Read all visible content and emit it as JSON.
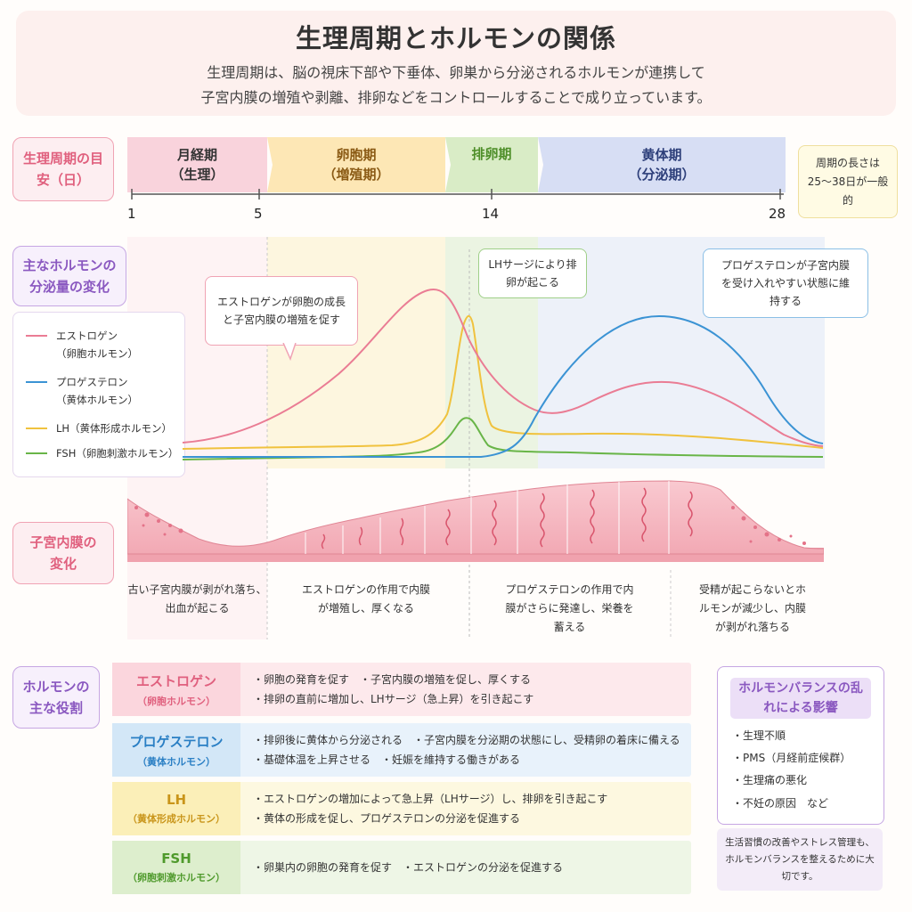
{
  "header": {
    "title": "生理周期とホルモンの関係",
    "subtitle_line1": "生理周期は、脳の視床下部や下垂体、卵巣から分泌されるホルモンが連携して",
    "subtitle_line2": "子宮内膜の増殖や剥離、排卵などをコントロールすることで成り立っています。"
  },
  "side_labels": {
    "cycle": "生理周期の目安（日）",
    "hormone": "主なホルモンの分泌量の変化",
    "endometrium": "子宮内膜の変化",
    "roles": "ホルモンの主な役割"
  },
  "phases": [
    {
      "name": "月経期",
      "sub": "（生理）",
      "color": "#f9d3dc",
      "text_color": "#333333"
    },
    {
      "name": "卵胞期",
      "sub": "（増殖期）",
      "color": "#fde7b5",
      "text_color": "#8a5a14"
    },
    {
      "name": "排卵期",
      "sub": "",
      "color": "#d9ecc6",
      "text_color": "#4f8f2a"
    },
    {
      "name": "黄体期",
      "sub": "（分泌期）",
      "color": "#d7def4",
      "text_color": "#2d3f7a"
    }
  ],
  "ticks": [
    "1",
    "5",
    "14",
    "28"
  ],
  "cycle_note": "周期の長さは25〜38日が一般的",
  "legend": [
    {
      "name": "エストロゲン",
      "sub": "（卵胞ホルモン）",
      "color": "#ea7c94"
    },
    {
      "name": "プロゲステロン",
      "sub": "（黄体ホルモン）",
      "color": "#3b93d4"
    },
    {
      "name": "LH（黄体形成ホルモン）",
      "sub": "",
      "color": "#f0c23e"
    },
    {
      "name": "FSH（卵胞刺激ホルモン）",
      "sub": "",
      "color": "#69b548"
    }
  ],
  "callouts": {
    "estrogen": "エストロゲンが卵胞の成長と子宮内膜の増殖を促す",
    "lh": "LHサージにより排卵が起こる",
    "progesterone": "プロゲステロンが子宮内膜を受け入れやすい状態に維持する"
  },
  "endometrium_captions": [
    "古い子宮内膜が剥がれ落ち、出血が起こる",
    "エストロゲンの作用で内膜が増殖し、厚くなる",
    "プロゲステロンの作用で内膜がさらに発達し、栄養を蓄える",
    "受精が起こらないとホルモンが減少し、内膜が剥がれ落ちる"
  ],
  "roles": [
    {
      "name": "エストロゲン",
      "sub": "（卵胞ホルモン）",
      "line1": "・卵胞の発育を促す　・子宮内膜の増殖を促し、厚くする",
      "line2": "・排卵の直前に増加し、LHサージ（急上昇）を引き起こす",
      "bg": "#fde9ec",
      "name_bg": "#fbd6dd",
      "color": "#e0607e"
    },
    {
      "name": "プロゲステロン",
      "sub": "（黄体ホルモン）",
      "line1": "・排卵後に黄体から分泌される　・子宮内膜を分泌期の状態にし、受精卵の着床に備える",
      "line2": "・基礎体温を上昇させる　・妊娠を維持する働きがある",
      "bg": "#e8f2fb",
      "name_bg": "#d3e7f7",
      "color": "#2a7fc4"
    },
    {
      "name": "LH",
      "sub": "（黄体形成ホルモン）",
      "line1": "・エストロゲンの増加によって急上昇（LHサージ）し、排卵を引き起こす",
      "line2": "・黄体の形成を促し、プロゲステロンの分泌を促進する",
      "bg": "#fdf8e0",
      "name_bg": "#fbefb8",
      "color": "#c9951a"
    },
    {
      "name": "FSH",
      "sub": "（卵胞刺激ホルモン）",
      "line1": "・卵巣内の卵胞の発育を促す　・エストロゲンの分泌を促進する",
      "line2": "",
      "bg": "#eef6e6",
      "name_bg": "#ddeecd",
      "color": "#4f9a2c"
    }
  ],
  "effects": {
    "title": "ホルモンバランスの乱れによる影響",
    "items": [
      "・生理不順",
      "・PMS（月経前症候群）",
      "・生理痛の悪化",
      "・不妊の原因　など"
    ],
    "note": "生活習慣の改善やストレス管理も、ホルモンバランスを整えるために大切です。"
  }
}
